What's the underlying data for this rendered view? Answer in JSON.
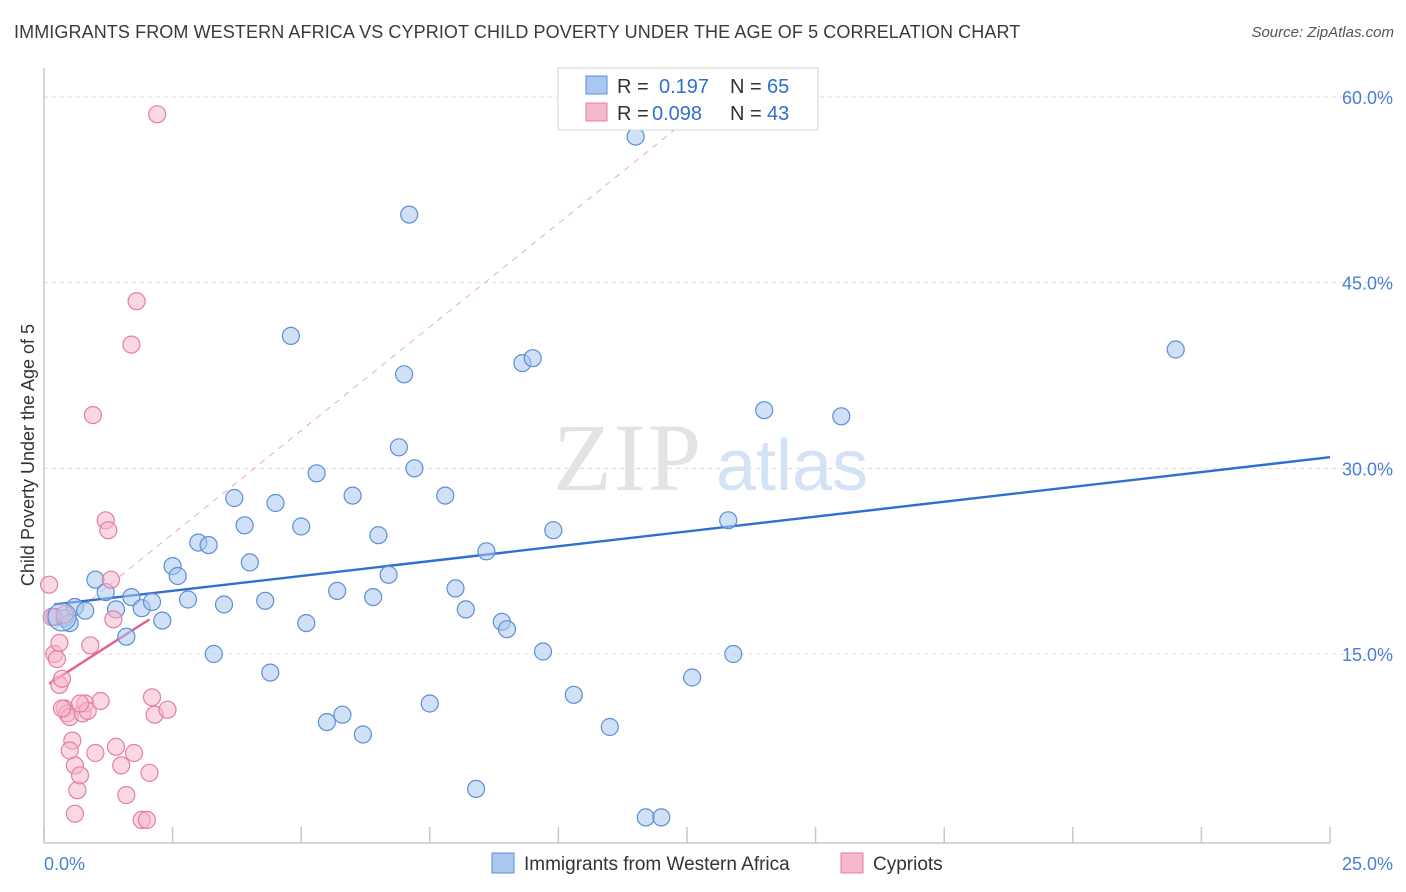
{
  "title": "IMMIGRANTS FROM WESTERN AFRICA VS CYPRIOT CHILD POVERTY UNDER THE AGE OF 5 CORRELATION CHART",
  "source": "Source: ZipAtlas.com",
  "watermark": {
    "zip": "ZIP",
    "atlas": "atlas"
  },
  "colors": {
    "blue": "#a9c7ef",
    "blue_edge": "#5b8fd6",
    "blue_line": "#2f6fce",
    "pink": "#f6b8cb",
    "pink_edge": "#e57ea0",
    "pink_line": "#e0608a",
    "tick": "#4a7fd4",
    "grid": "#dcdcdc"
  },
  "legend": {
    "rows": [
      {
        "r_label": "R = ",
        "r_value": "0.197",
        "n_label": "N = ",
        "n_value": "65",
        "series": "blue"
      },
      {
        "r_label": "R = ",
        "r_value": "0.098",
        "n_label": "N = ",
        "n_value": "43",
        "series": "pink"
      }
    ]
  },
  "chart_data": {
    "type": "scatter",
    "title": "IMMIGRANTS FROM WESTERN AFRICA VS CYPRIOT CHILD POVERTY UNDER THE AGE OF 5 CORRELATION CHART",
    "xlabel": "",
    "ylabel": "Child Poverty Under the Age of 5",
    "xlim": [
      0,
      25
    ],
    "ylim": [
      0,
      62
    ],
    "x_tick_labels": [
      "0.0%",
      "25.0%"
    ],
    "y_ticks": [
      15,
      30,
      45,
      60
    ],
    "y_tick_labels": [
      "15.0%",
      "30.0%",
      "45.0%",
      "60.0%"
    ],
    "grid": true,
    "legend_position": "bottom",
    "series": [
      {
        "name": "Immigrants from Western Africa",
        "color": "blue",
        "points": [
          [
            0.2,
            18.0
          ],
          [
            0.4,
            17.9
          ],
          [
            0.5,
            17.5
          ],
          [
            0.6,
            18.8
          ],
          [
            0.8,
            18.5
          ],
          [
            1.0,
            21.0
          ],
          [
            1.2,
            20.0
          ],
          [
            1.4,
            18.6
          ],
          [
            1.6,
            16.4
          ],
          [
            1.7,
            19.6
          ],
          [
            1.9,
            18.7
          ],
          [
            2.1,
            19.2
          ],
          [
            2.3,
            17.7
          ],
          [
            2.5,
            22.1
          ],
          [
            2.6,
            21.3
          ],
          [
            2.8,
            19.4
          ],
          [
            3.0,
            24.0
          ],
          [
            3.2,
            23.8
          ],
          [
            3.3,
            15.0
          ],
          [
            3.5,
            19.0
          ],
          [
            3.7,
            27.6
          ],
          [
            3.9,
            25.4
          ],
          [
            4.0,
            22.4
          ],
          [
            4.3,
            19.3
          ],
          [
            4.4,
            13.5
          ],
          [
            4.5,
            27.2
          ],
          [
            4.8,
            40.7
          ],
          [
            5.0,
            25.3
          ],
          [
            5.1,
            17.5
          ],
          [
            5.3,
            29.6
          ],
          [
            5.5,
            9.5
          ],
          [
            5.7,
            20.1
          ],
          [
            5.8,
            10.1
          ],
          [
            6.0,
            27.8
          ],
          [
            6.2,
            8.5
          ],
          [
            6.4,
            19.6
          ],
          [
            6.5,
            24.6
          ],
          [
            6.7,
            21.4
          ],
          [
            6.9,
            31.7
          ],
          [
            7.0,
            37.6
          ],
          [
            7.1,
            50.5
          ],
          [
            7.2,
            30.0
          ],
          [
            7.5,
            11.0
          ],
          [
            7.8,
            27.8
          ],
          [
            8.0,
            20.3
          ],
          [
            8.2,
            18.6
          ],
          [
            8.4,
            4.1
          ],
          [
            8.6,
            23.3
          ],
          [
            8.9,
            17.6
          ],
          [
            9.0,
            17.0
          ],
          [
            9.3,
            38.5
          ],
          [
            9.5,
            38.9
          ],
          [
            9.7,
            15.2
          ],
          [
            9.9,
            25.0
          ],
          [
            10.3,
            11.7
          ],
          [
            11.0,
            9.1
          ],
          [
            11.5,
            56.8
          ],
          [
            11.7,
            1.8
          ],
          [
            12.0,
            1.8
          ],
          [
            12.6,
            13.1
          ],
          [
            13.3,
            25.8
          ],
          [
            13.4,
            15.0
          ],
          [
            14.0,
            34.7
          ],
          [
            15.5,
            34.2
          ],
          [
            22.0,
            39.6
          ]
        ],
        "trend": {
          "x": [
            0.2,
            25.0
          ],
          "y": [
            19.0,
            30.9
          ]
        }
      },
      {
        "name": "Cypriots",
        "color": "pink",
        "points": [
          [
            0.1,
            20.6
          ],
          [
            0.15,
            18.0
          ],
          [
            0.2,
            15.0
          ],
          [
            0.25,
            14.6
          ],
          [
            0.3,
            12.5
          ],
          [
            0.35,
            13.0
          ],
          [
            0.4,
            10.6
          ],
          [
            0.45,
            10.2
          ],
          [
            0.5,
            9.9
          ],
          [
            0.55,
            8.0
          ],
          [
            0.6,
            6.0
          ],
          [
            0.65,
            4.0
          ],
          [
            0.7,
            5.2
          ],
          [
            0.75,
            10.2
          ],
          [
            0.8,
            11.0
          ],
          [
            0.85,
            10.4
          ],
          [
            0.9,
            15.7
          ],
          [
            0.95,
            34.3
          ],
          [
            1.0,
            7.0
          ],
          [
            1.1,
            11.2
          ],
          [
            1.2,
            25.8
          ],
          [
            1.25,
            25.0
          ],
          [
            1.3,
            21.0
          ],
          [
            1.35,
            17.8
          ],
          [
            1.4,
            7.5
          ],
          [
            1.5,
            6.0
          ],
          [
            1.6,
            3.6
          ],
          [
            1.7,
            40.0
          ],
          [
            1.75,
            7.0
          ],
          [
            1.8,
            43.5
          ],
          [
            1.9,
            1.6
          ],
          [
            2.0,
            1.6
          ],
          [
            2.05,
            5.4
          ],
          [
            2.1,
            11.5
          ],
          [
            2.15,
            10.1
          ],
          [
            2.2,
            58.6
          ],
          [
            2.4,
            10.5
          ],
          [
            0.35,
            10.6
          ],
          [
            0.5,
            7.2
          ],
          [
            0.6,
            2.1
          ],
          [
            0.7,
            11.0
          ],
          [
            0.3,
            15.9
          ],
          [
            0.4,
            18.2
          ]
        ],
        "trend": {
          "x": [
            0.1,
            2.05
          ],
          "y": [
            12.6,
            17.8
          ]
        }
      }
    ]
  }
}
